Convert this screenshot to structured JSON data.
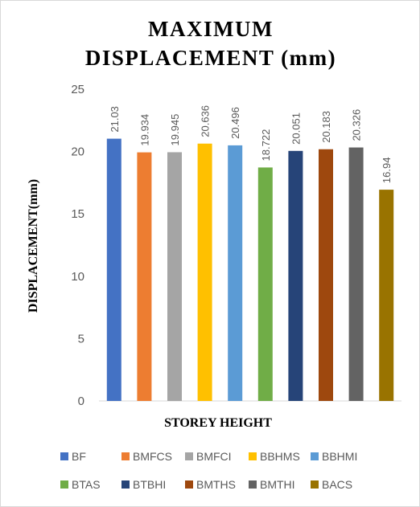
{
  "chart_data": {
    "type": "bar",
    "title": [
      "MAXIMUM",
      "DISPLACEMENT  (mm)"
    ],
    "xlabel": "STOREY HEIGHT",
    "ylabel": "DISPLACEMENT(mm)",
    "ylim": [
      0,
      25
    ],
    "yticks": [
      0,
      5,
      10,
      15,
      20,
      25
    ],
    "grid": false,
    "legend_position": "bottom",
    "categories": [
      "BF",
      "BMFCS",
      "BMFCI",
      "BBHMS",
      "BBHMI",
      "BTAS",
      "BTBHI",
      "BMTHS",
      "BMTHI",
      "BACS"
    ],
    "values": [
      21.03,
      19.934,
      19.945,
      20.636,
      20.496,
      18.722,
      20.051,
      20.183,
      20.326,
      16.94
    ],
    "value_labels": [
      "21.03",
      "19.934",
      "19.945",
      "20.636",
      "20.496",
      "18.722",
      "20.051",
      "20.183",
      "20.326",
      "16.94"
    ],
    "colors": [
      "#4472C4",
      "#ED7D31",
      "#A5A5A5",
      "#FFC000",
      "#5B9BD5",
      "#70AD47",
      "#264478",
      "#9E480E",
      "#636363",
      "#997300"
    ]
  }
}
